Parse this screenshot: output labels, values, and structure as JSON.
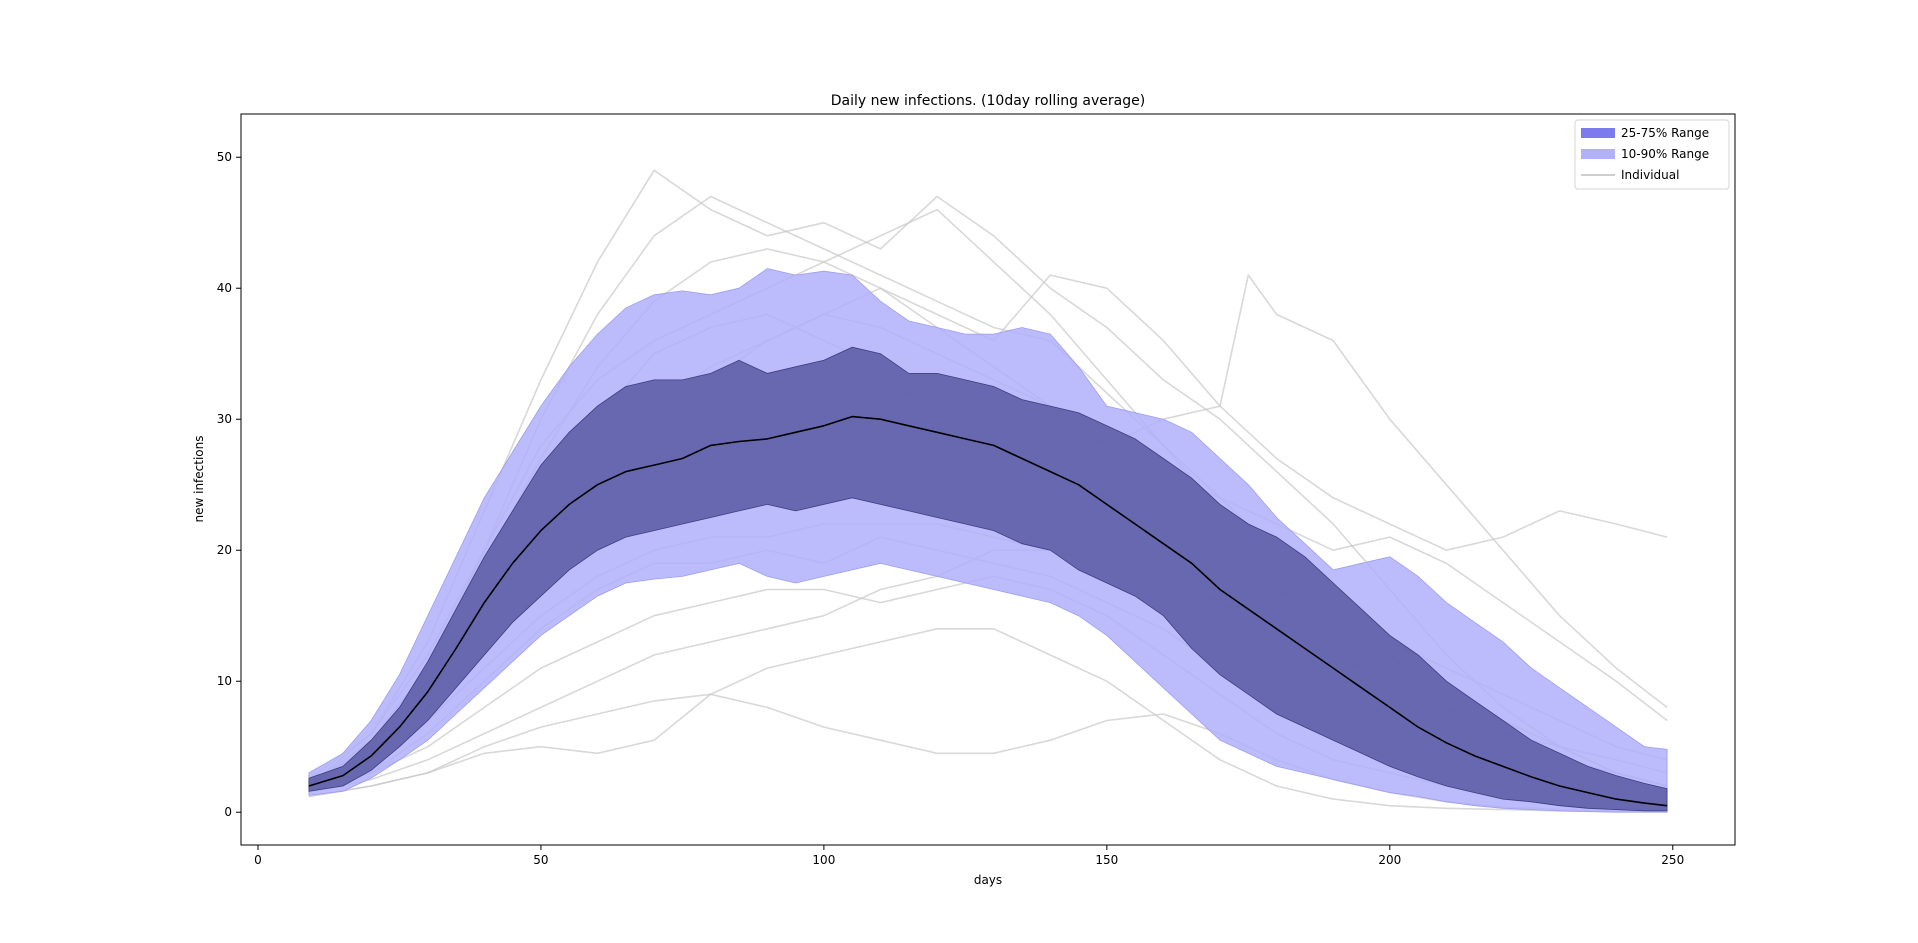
{
  "chart_data": {
    "type": "area",
    "title": "Daily new infections. (10day rolling average)",
    "xlabel": "days",
    "ylabel": "new infections",
    "xlim": [
      -3,
      261
    ],
    "ylim": [
      -2.5,
      53.3
    ],
    "xticks": [
      0,
      50,
      100,
      150,
      200,
      250
    ],
    "yticks": [
      0,
      10,
      20,
      30,
      40,
      50
    ],
    "grid": false,
    "legend_position": "top-right",
    "legend": [
      {
        "label": "25-75% Range",
        "kind": "band",
        "color": "#7b7bee"
      },
      {
        "label": "10-90% Range",
        "kind": "band",
        "color": "#b0b0fb"
      },
      {
        "label": "Individual",
        "kind": "line",
        "color": "#cfcfcf"
      }
    ],
    "colors": {
      "band_outer": "#b0b0fb",
      "band_inner": "#5c5ca6",
      "median": "#000000",
      "individual": "#c8c8c8"
    },
    "bands": {
      "x": [
        9,
        15,
        20,
        25,
        30,
        35,
        40,
        45,
        50,
        55,
        60,
        65,
        70,
        75,
        80,
        85,
        90,
        95,
        100,
        105,
        110,
        115,
        120,
        125,
        130,
        135,
        140,
        145,
        150,
        155,
        160,
        165,
        170,
        175,
        180,
        185,
        190,
        195,
        200,
        205,
        210,
        215,
        220,
        225,
        230,
        235,
        240,
        245,
        249
      ],
      "p90": [
        3.0,
        4.5,
        7.0,
        10.5,
        15.0,
        19.5,
        24.0,
        27.5,
        31.0,
        34.0,
        36.5,
        38.5,
        39.5,
        39.8,
        39.5,
        40.0,
        41.5,
        41.0,
        41.3,
        41.0,
        39.0,
        37.5,
        37.0,
        36.5,
        36.5,
        37.0,
        36.5,
        34.0,
        31.0,
        30.5,
        30.0,
        29.0,
        27.0,
        25.0,
        22.5,
        20.5,
        18.5,
        19.0,
        19.5,
        18.0,
        16.0,
        14.5,
        13.0,
        11.0,
        9.5,
        8.0,
        6.5,
        5.0,
        4.8
      ],
      "p75": [
        2.6,
        3.5,
        5.5,
        8.0,
        11.5,
        15.5,
        19.5,
        23.0,
        26.5,
        29.0,
        31.0,
        32.5,
        33.0,
        33.0,
        33.5,
        34.5,
        33.5,
        34.0,
        34.5,
        35.5,
        35.0,
        33.5,
        33.5,
        33.0,
        32.5,
        31.5,
        31.0,
        30.5,
        29.5,
        28.5,
        27.0,
        25.5,
        23.5,
        22.0,
        21.0,
        19.5,
        17.5,
        15.5,
        13.5,
        12.0,
        10.0,
        8.5,
        7.0,
        5.5,
        4.5,
        3.5,
        2.8,
        2.2,
        1.8
      ],
      "p50": [
        2.0,
        2.8,
        4.3,
        6.5,
        9.2,
        12.5,
        16.0,
        19.0,
        21.5,
        23.5,
        25.0,
        26.0,
        26.5,
        27.0,
        28.0,
        28.3,
        28.5,
        29.0,
        29.5,
        30.2,
        30.0,
        29.5,
        29.0,
        28.5,
        28.0,
        27.0,
        26.0,
        25.0,
        23.5,
        22.0,
        20.5,
        19.0,
        17.0,
        15.5,
        14.0,
        12.5,
        11.0,
        9.5,
        8.0,
        6.5,
        5.3,
        4.3,
        3.5,
        2.7,
        2.0,
        1.5,
        1.0,
        0.7,
        0.5
      ],
      "p25": [
        1.6,
        2.0,
        3.2,
        5.0,
        7.0,
        9.5,
        12.0,
        14.5,
        16.5,
        18.5,
        20.0,
        21.0,
        21.5,
        22.0,
        22.5,
        23.0,
        23.5,
        23.0,
        23.5,
        24.0,
        23.5,
        23.0,
        22.5,
        22.0,
        21.5,
        20.5,
        20.0,
        18.5,
        17.5,
        16.5,
        15.0,
        12.5,
        10.5,
        9.0,
        7.5,
        6.5,
        5.5,
        4.5,
        3.5,
        2.7,
        2.0,
        1.5,
        1.0,
        0.8,
        0.5,
        0.3,
        0.2,
        0.1,
        0.1
      ],
      "p10": [
        1.3,
        1.6,
        2.6,
        4.0,
        5.5,
        7.5,
        9.5,
        11.5,
        13.5,
        15.0,
        16.5,
        17.5,
        17.8,
        18.0,
        18.5,
        19.0,
        18.0,
        17.5,
        18.0,
        18.5,
        19.0,
        18.5,
        18.0,
        17.5,
        17.0,
        16.5,
        16.0,
        15.0,
        13.5,
        11.5,
        9.5,
        7.5,
        5.5,
        4.5,
        3.5,
        3.0,
        2.5,
        2.0,
        1.5,
        1.2,
        0.8,
        0.5,
        0.3,
        0.2,
        0.1,
        0.05,
        0.0,
        0.0,
        0.0
      ]
    },
    "individual_series": [
      {
        "x": [
          9,
          20,
          30,
          40,
          50,
          60,
          70,
          80,
          90,
          100,
          110,
          120,
          130,
          140,
          150,
          160,
          170,
          180,
          190,
          200,
          210,
          220,
          230,
          240,
          249
        ],
        "y": [
          2.5,
          6,
          13,
          23,
          33,
          42,
          49,
          46,
          44,
          45,
          43,
          47,
          44,
          40,
          37,
          33,
          30,
          26,
          22,
          17,
          12,
          8,
          5,
          3,
          2
        ]
      },
      {
        "x": [
          9,
          20,
          30,
          40,
          50,
          60,
          70,
          80,
          90,
          100,
          110,
          120,
          130,
          140,
          150,
          160,
          170,
          180,
          190,
          200,
          210,
          220,
          230,
          240,
          249
        ],
        "y": [
          2,
          5,
          11,
          20,
          30,
          38,
          44,
          47,
          45,
          43,
          41,
          39,
          37,
          36,
          32,
          28,
          24,
          20,
          16,
          12,
          8,
          5,
          3,
          2,
          1
        ]
      },
      {
        "x": [
          9,
          20,
          30,
          40,
          50,
          60,
          70,
          80,
          90,
          100,
          110,
          120,
          130,
          140,
          150,
          160,
          170,
          175,
          180,
          190,
          200,
          210,
          220,
          230,
          240,
          249
        ],
        "y": [
          1.5,
          4,
          9,
          15,
          21,
          26,
          30,
          33,
          36,
          38,
          40,
          38,
          36,
          41,
          40,
          36,
          31,
          41,
          38,
          36,
          30,
          25,
          20,
          15,
          11,
          8
        ]
      },
      {
        "x": [
          9,
          20,
          30,
          40,
          50,
          60,
          70,
          80,
          90,
          100,
          110,
          120,
          130,
          140,
          150,
          160,
          170,
          180,
          190,
          200,
          210,
          220,
          230,
          240,
          249
        ],
        "y": [
          2,
          4.5,
          9,
          15,
          21,
          26,
          30,
          32,
          33,
          34,
          33,
          31,
          30,
          29,
          28,
          30,
          31,
          27,
          24,
          22,
          20,
          21,
          23,
          22,
          21
        ]
      },
      {
        "x": [
          9,
          20,
          30,
          40,
          50,
          60,
          70,
          80,
          90,
          100,
          110,
          120,
          130,
          140,
          150,
          160,
          170,
          180,
          190,
          200,
          210,
          220,
          230,
          240,
          249
        ],
        "y": [
          1.8,
          4,
          8,
          12,
          17,
          21,
          24,
          26,
          28,
          29,
          31,
          33,
          32,
          30,
          28,
          26,
          24,
          22,
          20,
          21,
          19,
          16,
          13,
          10,
          7
        ]
      },
      {
        "x": [
          9,
          20,
          30,
          40,
          50,
          60,
          70,
          80,
          90,
          100,
          110,
          120,
          130,
          140,
          150,
          160,
          170,
          180,
          190,
          200,
          210,
          220,
          230,
          240,
          249
        ],
        "y": [
          1.5,
          3,
          5,
          8,
          11,
          13,
          15,
          16,
          17,
          17,
          16,
          17,
          18,
          17,
          15,
          12,
          9,
          6,
          4,
          3,
          2,
          1,
          0.6,
          0.3,
          0.2
        ]
      },
      {
        "x": [
          9,
          20,
          30,
          40,
          50,
          60,
          70,
          80,
          90,
          100,
          110,
          120,
          130,
          140,
          150,
          160,
          170,
          180,
          190,
          200,
          210,
          220,
          230,
          240,
          249
        ],
        "y": [
          1.5,
          2.5,
          4,
          6,
          8,
          10,
          12,
          13,
          14,
          15,
          17,
          18,
          20,
          20,
          19,
          17,
          14,
          11,
          9,
          6,
          4,
          3,
          2,
          1,
          0.5
        ]
      },
      {
        "x": [
          9,
          20,
          30,
          40,
          50,
          60,
          70,
          80,
          90,
          100,
          110,
          120,
          130,
          140,
          150,
          160,
          170,
          180,
          190,
          200,
          210,
          220,
          230,
          240,
          249
        ],
        "y": [
          1.2,
          2,
          3,
          5,
          6.5,
          7.5,
          8.5,
          9,
          8,
          6.5,
          5.5,
          4.5,
          4.5,
          5.5,
          7,
          7.5,
          6,
          4,
          2.5,
          1.5,
          0.8,
          0.4,
          0.2,
          0.1,
          0.1
        ]
      },
      {
        "x": [
          9,
          20,
          30,
          40,
          50,
          60,
          70,
          80,
          90,
          100,
          110,
          120,
          130,
          140,
          150,
          160,
          170,
          180,
          190,
          200,
          210,
          220,
          230,
          240,
          249
        ],
        "y": [
          1.2,
          2,
          3,
          4.5,
          5,
          4.5,
          5.5,
          9,
          11,
          12,
          13,
          14,
          14,
          12,
          10,
          7,
          4,
          2,
          1,
          0.5,
          0.3,
          0.2,
          0.1,
          0.05,
          0.05
        ]
      },
      {
        "x": [
          9,
          20,
          30,
          40,
          50,
          60,
          70,
          80,
          90,
          100,
          110,
          120,
          130,
          140,
          150,
          160,
          170,
          180,
          190,
          200,
          210,
          220,
          230,
          240,
          249
        ],
        "y": [
          2,
          6,
          12,
          20,
          28,
          33,
          36,
          38,
          40,
          42,
          44,
          46,
          42,
          38,
          33,
          28,
          23,
          18,
          13,
          9,
          6,
          4,
          2.5,
          1.5,
          1
        ]
      },
      {
        "x": [
          9,
          20,
          30,
          40,
          50,
          60,
          70,
          80,
          90,
          100,
          110,
          120,
          130,
          140,
          150,
          160,
          170,
          180,
          190,
          200,
          210,
          220,
          230,
          240,
          249
        ],
        "y": [
          2,
          5,
          10,
          17,
          24,
          30,
          35,
          37,
          38,
          36,
          34,
          31,
          29,
          27,
          24,
          22,
          20,
          17,
          14,
          11,
          8,
          6,
          4,
          2.5,
          1.5
        ]
      },
      {
        "x": [
          9,
          20,
          30,
          40,
          50,
          60,
          70,
          80,
          90,
          100,
          110,
          120,
          130,
          140,
          150,
          160,
          170,
          180,
          190,
          200,
          210,
          220,
          230,
          240,
          249
        ],
        "y": [
          1.8,
          4,
          8,
          13,
          18,
          22,
          24,
          25,
          27,
          28,
          29,
          29,
          28,
          26,
          24,
          21,
          19,
          17,
          15,
          13,
          11,
          9,
          7,
          5,
          4
        ]
      },
      {
        "x": [
          9,
          20,
          30,
          40,
          50,
          60,
          70,
          80,
          90,
          100,
          110,
          120,
          130,
          140,
          150,
          160,
          170,
          180,
          190,
          200,
          210,
          220,
          230,
          240,
          249
        ],
        "y": [
          2,
          4,
          7,
          11,
          15,
          18,
          20,
          21,
          21,
          22,
          22,
          22,
          21,
          20,
          19,
          18,
          16,
          14,
          12,
          10,
          8,
          6,
          5,
          4,
          3
        ]
      },
      {
        "x": [
          9,
          20,
          30,
          40,
          50,
          60,
          70,
          80,
          90,
          100,
          110,
          120,
          130,
          140,
          150,
          160,
          170,
          180,
          190,
          200,
          210,
          220,
          230,
          240,
          249
        ],
        "y": [
          2.2,
          5,
          10,
          16,
          22,
          27,
          31,
          34,
          36,
          38,
          37,
          35,
          33,
          31,
          28,
          25,
          21,
          18,
          15,
          12,
          9,
          7,
          5,
          3,
          2
        ]
      },
      {
        "x": [
          9,
          20,
          30,
          40,
          50,
          60,
          70,
          80,
          90,
          100,
          110,
          120,
          130,
          140,
          150,
          160,
          170,
          180,
          190,
          200,
          210,
          220,
          230,
          240,
          249
        ],
        "y": [
          1.5,
          3,
          6,
          10,
          14,
          17,
          19,
          19,
          20,
          19,
          21,
          20,
          19,
          18,
          16,
          14,
          11,
          8,
          6,
          4,
          3,
          2,
          1.5,
          1,
          0.8
        ]
      },
      {
        "x": [
          9,
          20,
          30,
          40,
          50,
          60,
          70,
          80,
          90,
          100,
          110,
          120,
          130,
          140,
          150,
          160,
          170,
          180,
          190,
          200,
          210,
          220,
          230,
          240,
          249
        ],
        "y": [
          2,
          5.5,
          11,
          19,
          27,
          34,
          39,
          42,
          43,
          42,
          40,
          37,
          34,
          31,
          27,
          23,
          19,
          15,
          11,
          8,
          5,
          3,
          2,
          1,
          0.6
        ]
      },
      {
        "x": [
          9,
          20,
          30,
          40,
          50,
          60,
          70,
          80,
          90,
          100,
          110,
          120,
          130,
          140,
          150,
          160,
          170,
          180,
          190,
          200,
          210,
          220,
          230,
          240,
          249
        ],
        "y": [
          1.8,
          4,
          8,
          14,
          20,
          25,
          28,
          30,
          31,
          32,
          31,
          29,
          27,
          25,
          22,
          19,
          16,
          13,
          10,
          7,
          5,
          3.5,
          2.5,
          1.5,
          1
        ]
      },
      {
        "x": [
          9,
          20,
          30,
          40,
          50,
          60,
          70,
          80,
          90,
          100,
          110,
          120,
          130,
          140,
          150,
          160,
          170,
          180,
          190,
          200,
          210,
          220,
          230,
          240,
          249
        ],
        "y": [
          1.5,
          3.5,
          7,
          12,
          17,
          21,
          24,
          25,
          26,
          26,
          25,
          24,
          23,
          22,
          20,
          18,
          16,
          14,
          12,
          10,
          8,
          6,
          4,
          3,
          2
        ]
      }
    ]
  }
}
